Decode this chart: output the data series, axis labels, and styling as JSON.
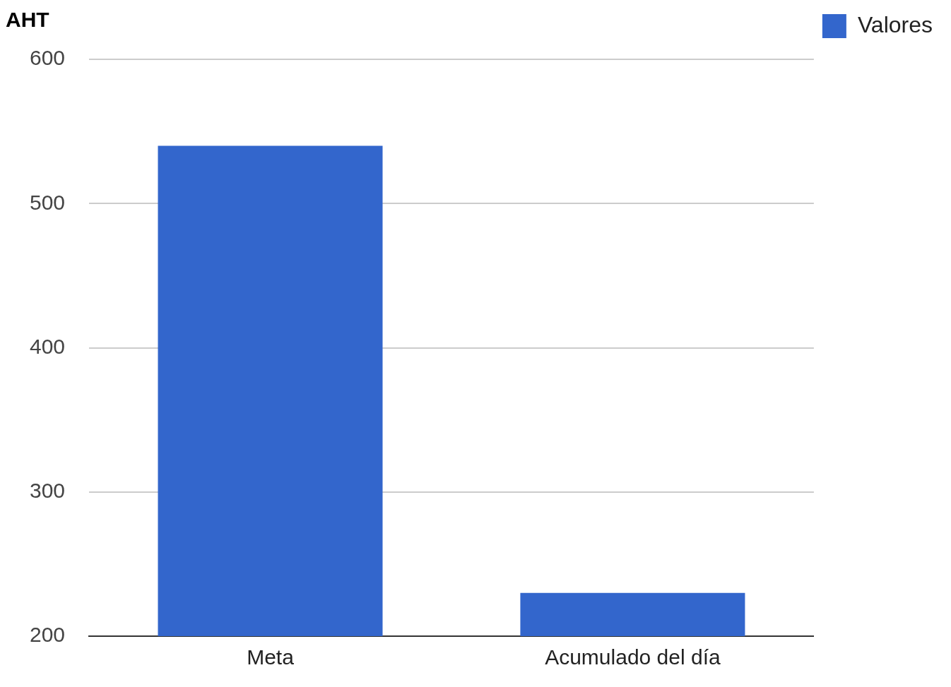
{
  "chart_data": {
    "type": "bar",
    "title": "AHT",
    "categories": [
      "Meta",
      "Acumulado del día"
    ],
    "series": [
      {
        "name": "Valores",
        "color": "#3366cc",
        "values": [
          540,
          230
        ]
      }
    ],
    "ylim": [
      200,
      600
    ],
    "yticks": [
      200,
      300,
      400,
      500,
      600
    ],
    "grid": "y",
    "legend": "right"
  }
}
